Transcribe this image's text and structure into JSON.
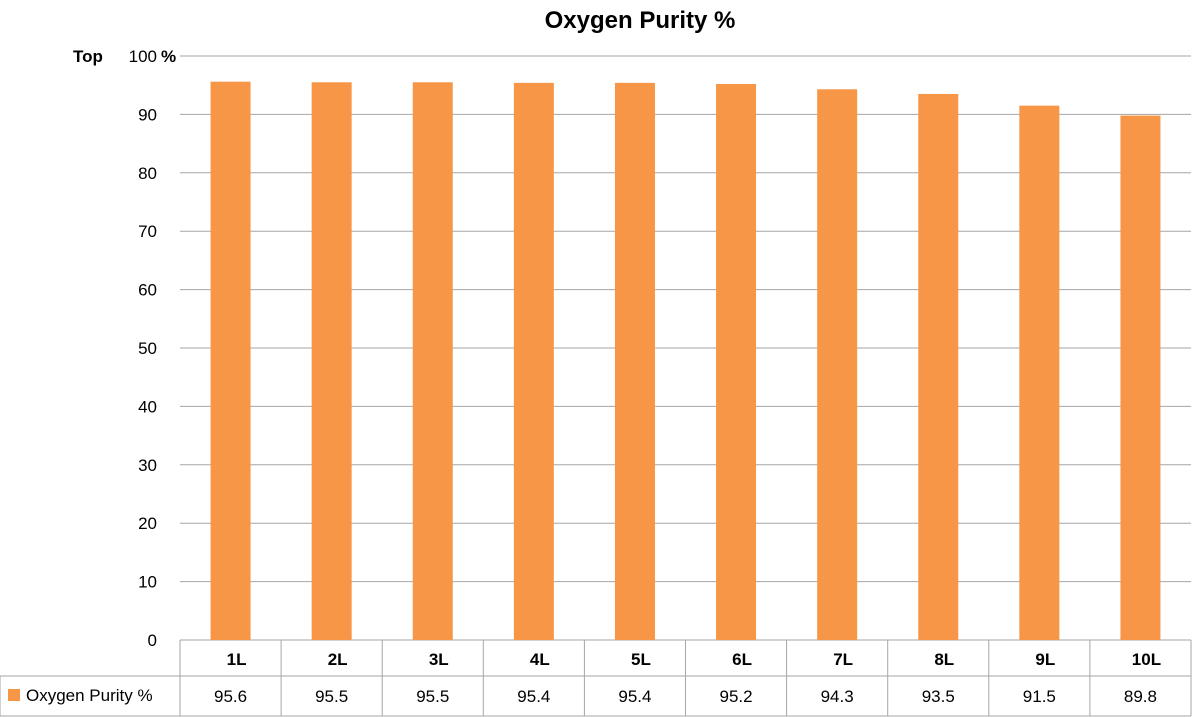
{
  "chart_data": {
    "type": "bar",
    "title": "Oxygen Purity %",
    "ylabel": "%",
    "top_label": "Top",
    "ylim": [
      0,
      100
    ],
    "yticks": [
      0,
      10,
      20,
      30,
      40,
      50,
      60,
      70,
      80,
      90,
      100
    ],
    "grid": true,
    "categories": [
      "1L",
      "2L",
      "3L",
      "4L",
      "5L",
      "6L",
      "7L",
      "8L",
      "9L",
      "10L"
    ],
    "series": [
      {
        "name": "Oxygen Purity %",
        "color": "#f79646",
        "values": [
          95.6,
          95.5,
          95.5,
          95.4,
          95.4,
          95.2,
          94.3,
          93.5,
          91.5,
          89.8
        ],
        "labels": [
          "95.6",
          "95.5",
          "95.5",
          "95.4",
          "95.4",
          "95.2",
          "94.3",
          "93.5",
          "91.5",
          "89.8"
        ]
      }
    ],
    "legend": "data-table"
  }
}
